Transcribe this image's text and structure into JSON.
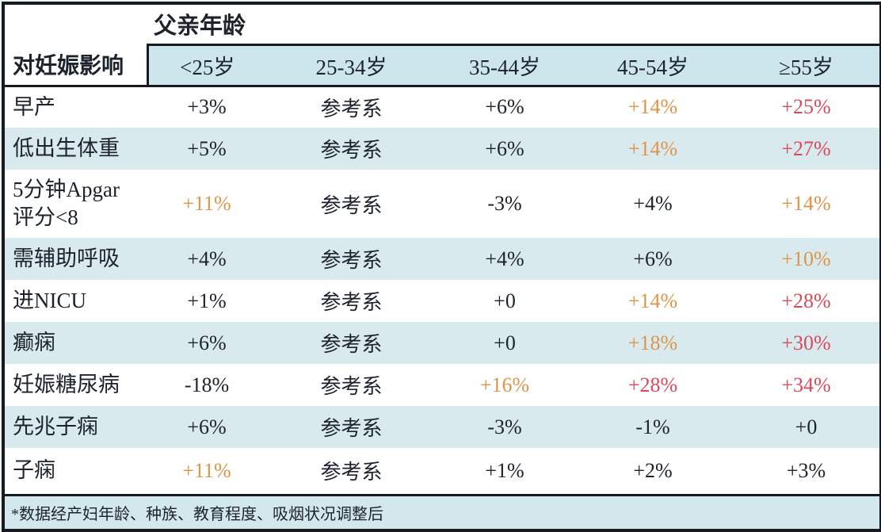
{
  "colors": {
    "text": "#1d232c",
    "line": "#171b20",
    "orange": "#dd9549",
    "red": "#d94b5c",
    "header_bg": "#cde6ee",
    "alt_row_bg": "#d9eaee",
    "footer_bg": "#d3e8ec"
  },
  "table": {
    "group_header": "父亲年龄",
    "corner_header": "对妊娠影响",
    "columns": [
      "<25岁",
      "25-34岁",
      "35-44岁",
      "45-54岁",
      "≥55岁"
    ],
    "rows": [
      {
        "label": "早产",
        "cells": [
          {
            "text": "+3%",
            "tone": "k"
          },
          {
            "text": "参考系",
            "tone": "k"
          },
          {
            "text": "+6%",
            "tone": "k"
          },
          {
            "text": "+14%",
            "tone": "o"
          },
          {
            "text": "+25%",
            "tone": "r"
          }
        ]
      },
      {
        "label": "低出生体重",
        "cells": [
          {
            "text": "+5%",
            "tone": "k"
          },
          {
            "text": "参考系",
            "tone": "k"
          },
          {
            "text": "+6%",
            "tone": "k"
          },
          {
            "text": "+14%",
            "tone": "o"
          },
          {
            "text": "+27%",
            "tone": "r"
          }
        ]
      },
      {
        "label": "5分钟Apgar 评分<8",
        "cells": [
          {
            "text": "+11%",
            "tone": "o"
          },
          {
            "text": "参考系",
            "tone": "k"
          },
          {
            "text": "-3%",
            "tone": "k"
          },
          {
            "text": "+4%",
            "tone": "k"
          },
          {
            "text": "+14%",
            "tone": "o"
          }
        ]
      },
      {
        "label": "需辅助呼吸",
        "cells": [
          {
            "text": "+4%",
            "tone": "k"
          },
          {
            "text": "参考系",
            "tone": "k"
          },
          {
            "text": "+4%",
            "tone": "k"
          },
          {
            "text": "+6%",
            "tone": "k"
          },
          {
            "text": "+10%",
            "tone": "o"
          }
        ]
      },
      {
        "label": "进NICU",
        "cells": [
          {
            "text": "+1%",
            "tone": "k"
          },
          {
            "text": "参考系",
            "tone": "k"
          },
          {
            "text": "+0",
            "tone": "k"
          },
          {
            "text": "+14%",
            "tone": "o"
          },
          {
            "text": "+28%",
            "tone": "r"
          }
        ]
      },
      {
        "label": "癫痫",
        "cells": [
          {
            "text": "+6%",
            "tone": "k"
          },
          {
            "text": "参考系",
            "tone": "k"
          },
          {
            "text": "+0",
            "tone": "k"
          },
          {
            "text": "+18%",
            "tone": "o"
          },
          {
            "text": "+30%",
            "tone": "r"
          }
        ]
      },
      {
        "label": "妊娠糖尿病",
        "cells": [
          {
            "text": "-18%",
            "tone": "k"
          },
          {
            "text": "参考系",
            "tone": "k"
          },
          {
            "text": "+16%",
            "tone": "o"
          },
          {
            "text": "+28%",
            "tone": "r"
          },
          {
            "text": "+34%",
            "tone": "r"
          }
        ]
      },
      {
        "label": "先兆子痫",
        "cells": [
          {
            "text": "+6%",
            "tone": "k"
          },
          {
            "text": "参考系",
            "tone": "k"
          },
          {
            "text": "-3%",
            "tone": "k"
          },
          {
            "text": "-1%",
            "tone": "k"
          },
          {
            "text": "+0",
            "tone": "k"
          }
        ]
      },
      {
        "label": "子痫",
        "cells": [
          {
            "text": "+11%",
            "tone": "o"
          },
          {
            "text": "参考系",
            "tone": "k"
          },
          {
            "text": "+1%",
            "tone": "k"
          },
          {
            "text": "+2%",
            "tone": "k"
          },
          {
            "text": "+3%",
            "tone": "k"
          }
        ]
      }
    ],
    "footnote": "*数据经产妇年龄、种族、教育程度、吸烟状况调整后"
  },
  "chart_data": {
    "type": "table",
    "title": "父亲年龄对妊娠影响",
    "column_group_header": "父亲年龄",
    "row_group_header": "对妊娠影响",
    "columns": [
      "<25岁",
      "25-34岁",
      "35-44岁",
      "45-54岁",
      "≥55岁"
    ],
    "reference_category": "25-34岁",
    "rows": [
      {
        "label": "早产",
        "values": [
          "+3%",
          "参考系",
          "+6%",
          "+14%",
          "+25%"
        ]
      },
      {
        "label": "低出生体重",
        "values": [
          "+5%",
          "参考系",
          "+6%",
          "+14%",
          "+27%"
        ]
      },
      {
        "label": "5分钟Apgar评分<8",
        "values": [
          "+11%",
          "参考系",
          "-3%",
          "+4%",
          "+14%"
        ]
      },
      {
        "label": "需辅助呼吸",
        "values": [
          "+4%",
          "参考系",
          "+4%",
          "+6%",
          "+10%"
        ]
      },
      {
        "label": "进NICU",
        "values": [
          "+1%",
          "参考系",
          "+0",
          "+14%",
          "+28%"
        ]
      },
      {
        "label": "癫痫",
        "values": [
          "+6%",
          "参考系",
          "+0",
          "+18%",
          "+30%"
        ]
      },
      {
        "label": "妊娠糖尿病",
        "values": [
          "-18%",
          "参考系",
          "+16%",
          "+28%",
          "+34%"
        ]
      },
      {
        "label": "先兆子痫",
        "values": [
          "+6%",
          "参考系",
          "-3%",
          "-1%",
          "+0"
        ]
      },
      {
        "label": "子痫",
        "values": [
          "+11%",
          "参考系",
          "+1%",
          "+2%",
          "+3%"
        ]
      }
    ],
    "color_coding": {
      "black": "near reference",
      "orange": "moderately elevated (+10% to +18%)",
      "red": "strongly elevated (+25% and above)"
    },
    "footnote": "*数据经产妇年龄、种族、教育程度、吸烟状况调整后",
    "legend_position": "none",
    "grid": "alternating row shading"
  }
}
